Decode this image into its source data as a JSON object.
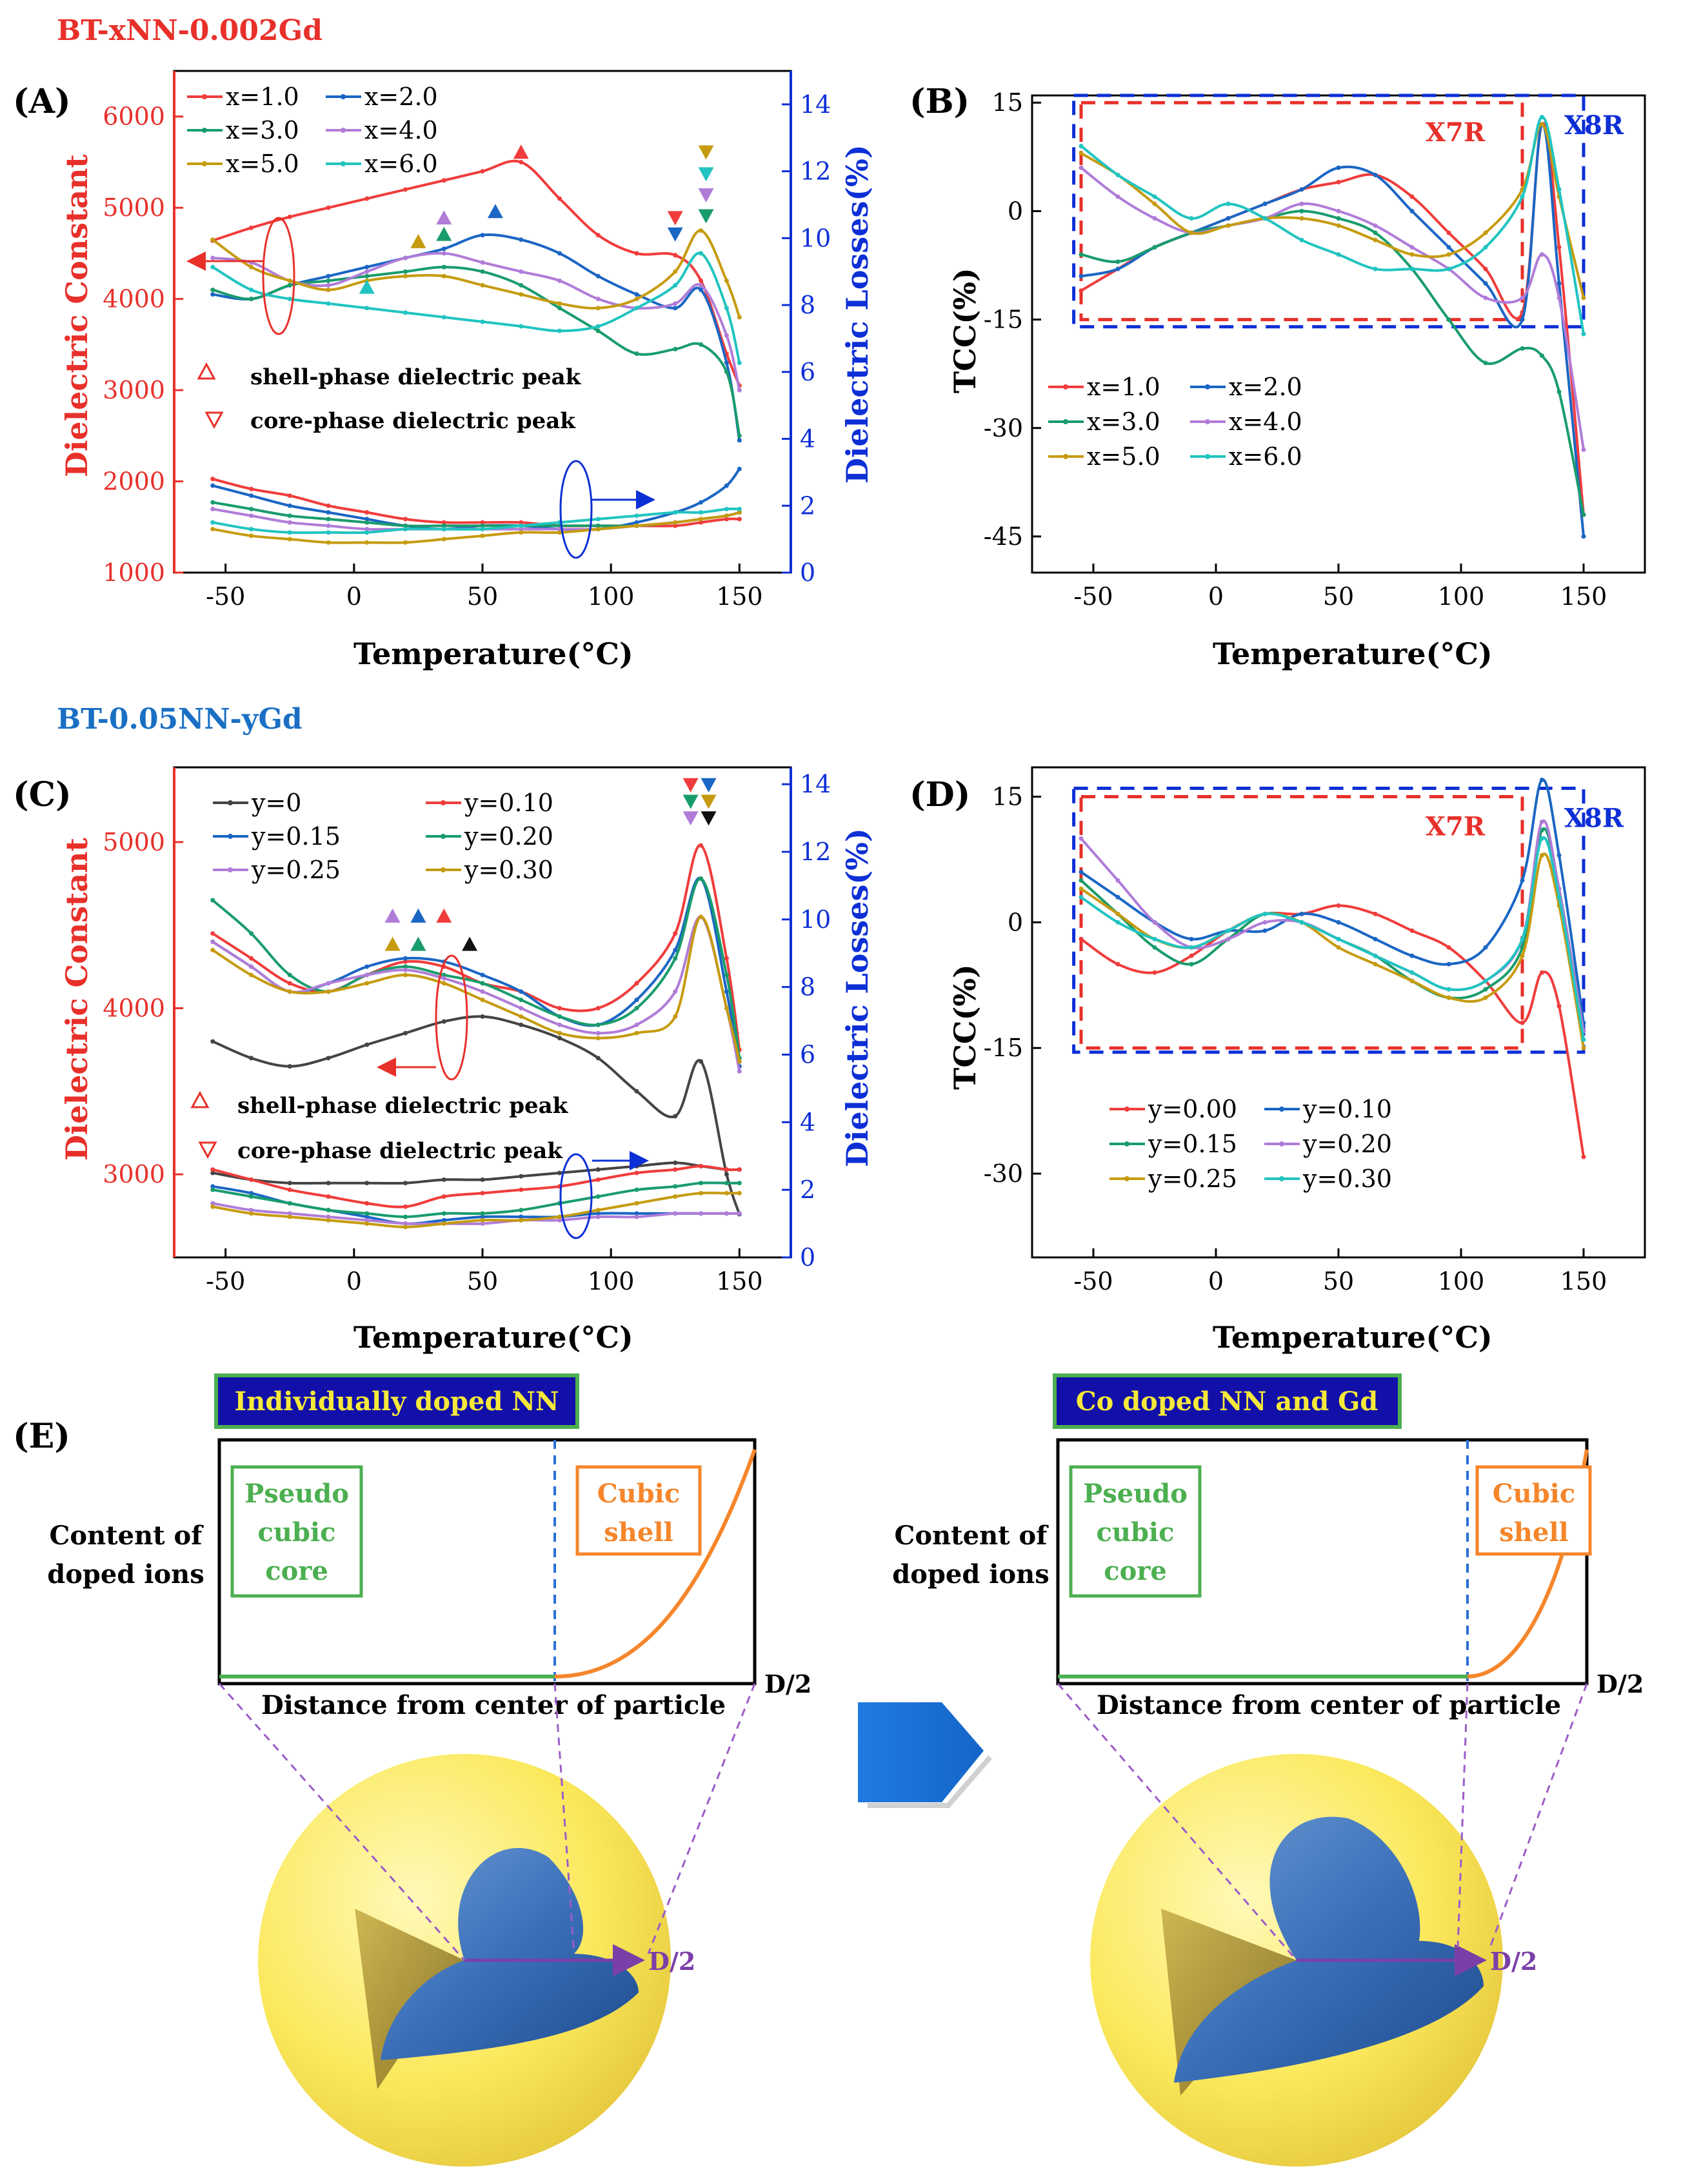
{
  "figure": {
    "group1_title": "BT-xNN-0.002Gd",
    "group2_title": "BT-0.05NN-yGd",
    "colors": {
      "red": "#e8302a",
      "blue": "#0d2fd6",
      "darkred": "#d92020"
    }
  },
  "chart_data": [
    {
      "id": "A",
      "type": "line",
      "panel_label": "(A)",
      "xlabel": "Temperature(°C)",
      "ylabel": "Dielectric Constant",
      "y2label": "Dielectric Losses(%)",
      "xlim": [
        -70,
        170
      ],
      "ylim": [
        1000,
        6500
      ],
      "y2lim": [
        0,
        15
      ],
      "xticks": [
        -50,
        0,
        50,
        100,
        150
      ],
      "yticks": [
        1000,
        2000,
        3000,
        4000,
        5000,
        6000
      ],
      "y2ticks": [
        0,
        2,
        4,
        6,
        8,
        10,
        12,
        14
      ],
      "x": [
        -55,
        -40,
        -25,
        -10,
        5,
        20,
        35,
        50,
        65,
        80,
        95,
        110,
        125,
        135,
        145,
        150
      ],
      "series": [
        {
          "name": "x=1.0",
          "color": "#f03c3c",
          "eps": [
            4640,
            4780,
            4900,
            5000,
            5100,
            5200,
            5300,
            5400,
            5500,
            5100,
            4700,
            4500,
            4480,
            4200,
            3400,
            3050
          ],
          "loss": [
            2.8,
            2.5,
            2.3,
            2.0,
            1.8,
            1.6,
            1.5,
            1.5,
            1.5,
            1.4,
            1.4,
            1.4,
            1.4,
            1.5,
            1.6,
            1.6
          ]
        },
        {
          "name": "x=2.0",
          "color": "#1a66c4",
          "eps": [
            4050,
            4000,
            4150,
            4250,
            4350,
            4450,
            4550,
            4700,
            4650,
            4500,
            4250,
            4050,
            3900,
            4100,
            3300,
            2450
          ],
          "loss": [
            2.6,
            2.3,
            2.0,
            1.8,
            1.6,
            1.4,
            1.3,
            1.4,
            1.4,
            1.3,
            1.3,
            1.5,
            1.8,
            2.1,
            2.6,
            3.1
          ]
        },
        {
          "name": "x=3.0",
          "color": "#199c6c",
          "eps": [
            4100,
            4000,
            4150,
            4200,
            4250,
            4300,
            4350,
            4300,
            4150,
            3900,
            3650,
            3400,
            3450,
            3500,
            3200,
            2500
          ],
          "loss": [
            2.1,
            1.9,
            1.7,
            1.6,
            1.5,
            1.4,
            1.4,
            1.4,
            1.4,
            1.4,
            1.4,
            1.4,
            1.5,
            1.6,
            1.7,
            1.8
          ]
        },
        {
          "name": "x=4.0",
          "color": "#b07cd8",
          "eps": [
            4450,
            4400,
            4200,
            4150,
            4300,
            4450,
            4500,
            4400,
            4300,
            4200,
            4000,
            3900,
            3950,
            4150,
            3600,
            3000
          ],
          "loss": [
            1.9,
            1.7,
            1.5,
            1.4,
            1.3,
            1.3,
            1.3,
            1.3,
            1.3,
            1.3,
            1.3,
            1.4,
            1.5,
            1.6,
            1.7,
            1.8
          ]
        },
        {
          "name": "x=5.0",
          "color": "#c69b0f",
          "eps": [
            4650,
            4350,
            4200,
            4100,
            4200,
            4250,
            4250,
            4150,
            4050,
            3950,
            3900,
            4000,
            4300,
            4750,
            4200,
            3800
          ],
          "loss": [
            1.3,
            1.1,
            1.0,
            0.9,
            0.9,
            0.9,
            1.0,
            1.1,
            1.2,
            1.2,
            1.3,
            1.4,
            1.5,
            1.6,
            1.7,
            1.8
          ]
        },
        {
          "name": "x=6.0",
          "color": "#21c4c0",
          "eps": [
            4350,
            4100,
            4000,
            3950,
            3900,
            3850,
            3800,
            3750,
            3700,
            3650,
            3700,
            3900,
            4150,
            4500,
            3900,
            3300
          ],
          "loss": [
            1.5,
            1.3,
            1.2,
            1.2,
            1.2,
            1.3,
            1.3,
            1.3,
            1.4,
            1.5,
            1.6,
            1.7,
            1.8,
            1.8,
            1.9,
            1.9
          ]
        }
      ],
      "shell_markers": [
        {
          "x": 65,
          "eps": 5600,
          "color": "#f03c3c"
        },
        {
          "x": 55,
          "eps": 4950,
          "color": "#1a66c4"
        },
        {
          "x": 35,
          "eps": 4700,
          "color": "#199c6c"
        },
        {
          "x": 35,
          "eps": 4880,
          "color": "#b07cd8"
        },
        {
          "x": 25,
          "eps": 4620,
          "color": "#c69b0f"
        },
        {
          "x": 5,
          "eps": 4120,
          "color": "#21c4c0"
        }
      ],
      "core_markers": [
        {
          "x": 125,
          "eps": 4900,
          "color": "#f03c3c"
        },
        {
          "x": 125,
          "eps": 4720,
          "color": "#1a66c4"
        },
        {
          "x": 137,
          "eps": 4920,
          "color": "#199c6c"
        },
        {
          "x": 137,
          "eps": 5150,
          "color": "#b07cd8"
        },
        {
          "x": 137,
          "eps": 5620,
          "color": "#c69b0f"
        },
        {
          "x": 137,
          "eps": 5380,
          "color": "#21c4c0"
        }
      ],
      "annotations": [
        "shell-phase dielectric peak",
        "core-phase dielectric peak"
      ]
    },
    {
      "id": "B",
      "type": "line",
      "panel_label": "(B)",
      "xlabel": "Temperature(°C)",
      "ylabel": "TCC(%)",
      "xlim": [
        -75,
        175
      ],
      "ylim": [
        -50,
        16
      ],
      "xticks": [
        -50,
        0,
        50,
        100,
        150
      ],
      "yticks": [
        15,
        0,
        -15,
        -30,
        -45
      ],
      "x": [
        -55,
        -40,
        -25,
        -10,
        5,
        20,
        35,
        50,
        65,
        80,
        95,
        110,
        125,
        133,
        140,
        150
      ],
      "series": [
        {
          "name": "x=1.0",
          "color": "#f03c3c",
          "tcc": [
            -11,
            -8,
            -5,
            -3,
            -1,
            1,
            3,
            4,
            5,
            2,
            -3,
            -8,
            -14,
            12,
            -5,
            -42
          ]
        },
        {
          "name": "x=2.0",
          "color": "#1a66c4",
          "tcc": [
            -9,
            -8,
            -5,
            -3,
            -1,
            1,
            3,
            6,
            5,
            0,
            -5,
            -10,
            -15,
            12,
            -10,
            -45
          ]
        },
        {
          "name": "x=3.0",
          "color": "#199c6c",
          "tcc": [
            -6,
            -7,
            -5,
            -3,
            -2,
            -1,
            0,
            -1,
            -3,
            -8,
            -15,
            -21,
            -19,
            -20,
            -25,
            -42
          ]
        },
        {
          "name": "x=4.0",
          "color": "#b07cd8",
          "tcc": [
            6,
            2,
            -1,
            -3,
            -2,
            -1,
            1,
            0,
            -2,
            -5,
            -8,
            -12,
            -12,
            -6,
            -12,
            -33
          ]
        },
        {
          "name": "x=5.0",
          "color": "#c69b0f",
          "tcc": [
            8,
            5,
            1,
            -3,
            -2,
            -1,
            -1,
            -2,
            -4,
            -6,
            -6,
            -3,
            3,
            12,
            2,
            -12
          ]
        },
        {
          "name": "x=6.0",
          "color": "#21c4c0",
          "tcc": [
            9,
            5,
            2,
            -1,
            1,
            -1,
            -4,
            -6,
            -8,
            -8,
            -8,
            -5,
            2,
            13,
            3,
            -17
          ]
        }
      ],
      "boxes": [
        {
          "label": "X7R",
          "x0": -55,
          "x1": 125,
          "y0": -15,
          "y1": 15,
          "color": "#e8302a"
        },
        {
          "label": "X8R",
          "x0": -58,
          "x1": 150,
          "y0": -16,
          "y1": 16,
          "color": "#0d2fd6"
        }
      ]
    },
    {
      "id": "C",
      "type": "line",
      "panel_label": "(C)",
      "xlabel": "Temperature(°C)",
      "ylabel": "Dielectric Constant",
      "y2label": "Dielectric Losses(%)",
      "xlim": [
        -70,
        170
      ],
      "ylim": [
        2500,
        5450
      ],
      "y2lim": [
        0,
        14.5
      ],
      "xticks": [
        -50,
        0,
        50,
        100,
        150
      ],
      "yticks": [
        3000,
        4000,
        5000
      ],
      "y2ticks": [
        0,
        2,
        4,
        6,
        8,
        10,
        12,
        14
      ],
      "x": [
        -55,
        -40,
        -25,
        -10,
        5,
        20,
        35,
        50,
        65,
        80,
        95,
        110,
        125,
        135,
        145,
        150
      ],
      "series": [
        {
          "name": "y=0",
          "color": "#444444",
          "eps": [
            3800,
            3700,
            3650,
            3700,
            3780,
            3850,
            3920,
            3950,
            3900,
            3820,
            3700,
            3500,
            3350,
            3680,
            3000,
            2760
          ],
          "loss": [
            2.5,
            2.3,
            2.2,
            2.2,
            2.2,
            2.2,
            2.3,
            2.3,
            2.4,
            2.5,
            2.6,
            2.7,
            2.8,
            2.7,
            2.6,
            2.6
          ]
        },
        {
          "name": "y=0.10",
          "color": "#f03c3c",
          "eps": [
            4450,
            4300,
            4150,
            4100,
            4200,
            4280,
            4250,
            4150,
            4100,
            4000,
            4000,
            4150,
            4450,
            4980,
            4300,
            3750
          ],
          "loss": [
            2.6,
            2.3,
            2.0,
            1.8,
            1.6,
            1.5,
            1.8,
            1.9,
            2.0,
            2.1,
            2.3,
            2.5,
            2.6,
            2.7,
            2.6,
            2.6
          ]
        },
        {
          "name": "y=0.15",
          "color": "#1a66c4",
          "eps": [
            4400,
            4250,
            4100,
            4150,
            4250,
            4300,
            4280,
            4200,
            4100,
            3950,
            3900,
            4050,
            4350,
            4780,
            4100,
            3650
          ],
          "loss": [
            2.1,
            1.9,
            1.6,
            1.4,
            1.2,
            1.0,
            1.1,
            1.2,
            1.2,
            1.2,
            1.3,
            1.3,
            1.3,
            1.3,
            1.3,
            1.3
          ]
        },
        {
          "name": "y=0.20",
          "color": "#199c6c",
          "eps": [
            4650,
            4450,
            4200,
            4100,
            4200,
            4250,
            4200,
            4150,
            4050,
            3950,
            3900,
            4000,
            4300,
            4780,
            4200,
            3700
          ],
          "loss": [
            2.0,
            1.8,
            1.6,
            1.4,
            1.3,
            1.2,
            1.3,
            1.3,
            1.4,
            1.6,
            1.8,
            2.0,
            2.1,
            2.2,
            2.2,
            2.2
          ]
        },
        {
          "name": "y=0.25",
          "color": "#b07cd8",
          "eps": [
            4400,
            4250,
            4100,
            4150,
            4200,
            4230,
            4180,
            4100,
            4000,
            3900,
            3850,
            3900,
            4100,
            4550,
            4000,
            3620
          ],
          "loss": [
            1.6,
            1.4,
            1.3,
            1.2,
            1.1,
            1.0,
            1.0,
            1.0,
            1.1,
            1.1,
            1.2,
            1.2,
            1.3,
            1.3,
            1.3,
            1.3
          ]
        },
        {
          "name": "y=0.30",
          "color": "#c69b0f",
          "eps": [
            4350,
            4200,
            4100,
            4100,
            4150,
            4200,
            4150,
            4050,
            3950,
            3850,
            3820,
            3850,
            3950,
            4550,
            4000,
            3680
          ],
          "loss": [
            1.5,
            1.3,
            1.2,
            1.1,
            1.0,
            0.9,
            1.0,
            1.1,
            1.1,
            1.2,
            1.4,
            1.6,
            1.8,
            1.9,
            1.9,
            1.9
          ]
        }
      ],
      "shell_markers": [
        {
          "x": 15,
          "eps": 4550,
          "color": "#b07cd8"
        },
        {
          "x": 25,
          "eps": 4550,
          "color": "#1a66c4"
        },
        {
          "x": 35,
          "eps": 4550,
          "color": "#f03c3c"
        },
        {
          "x": 15,
          "eps": 4380,
          "color": "#c69b0f"
        },
        {
          "x": 25,
          "eps": 4380,
          "color": "#199c6c"
        },
        {
          "x": 45,
          "eps": 4380,
          "color": "#111111"
        }
      ],
      "core_markers": [
        {
          "x": 131,
          "eps": 5350,
          "color": "#f03c3c"
        },
        {
          "x": 138,
          "eps": 5350,
          "color": "#1a66c4"
        },
        {
          "x": 131,
          "eps": 5250,
          "color": "#199c6c"
        },
        {
          "x": 138,
          "eps": 5250,
          "color": "#c69b0f"
        },
        {
          "x": 131,
          "eps": 5150,
          "color": "#b07cd8"
        },
        {
          "x": 138,
          "eps": 5150,
          "color": "#111111"
        }
      ],
      "annotations": [
        "shell-phase dielectric peak",
        "core-phase dielectric peak"
      ]
    },
    {
      "id": "D",
      "type": "line",
      "panel_label": "(D)",
      "xlabel": "Temperature(°C)",
      "ylabel": "TCC(%)",
      "xlim": [
        -75,
        175
      ],
      "ylim": [
        -40,
        18.5
      ],
      "xticks": [
        -50,
        0,
        50,
        100,
        150
      ],
      "yticks": [
        15,
        0,
        -15,
        -30
      ],
      "x": [
        -55,
        -40,
        -25,
        -10,
        5,
        20,
        35,
        50,
        65,
        80,
        95,
        110,
        125,
        133,
        140,
        150
      ],
      "series": [
        {
          "name": "y=0.00",
          "color": "#f03c3c",
          "tcc": [
            -2,
            -5,
            -6,
            -4,
            -1,
            1,
            1,
            2,
            1,
            -1,
            -3,
            -7,
            -12,
            -6,
            -10,
            -28
          ]
        },
        {
          "name": "y=0.10",
          "color": "#1a66c4",
          "tcc": [
            6,
            3,
            0,
            -2,
            -1,
            -1,
            1,
            0,
            -2,
            -4,
            -5,
            -3,
            5,
            17,
            8,
            -12
          ]
        },
        {
          "name": "y=0.15",
          "color": "#199c6c",
          "tcc": [
            5,
            1,
            -3,
            -5,
            -2,
            1,
            0,
            -2,
            -4,
            -7,
            -9,
            -8,
            -3,
            11,
            4,
            -13
          ]
        },
        {
          "name": "y=0.20",
          "color": "#b07cd8",
          "tcc": [
            10,
            5,
            0,
            -3,
            -2,
            0,
            0,
            -2,
            -4,
            -6,
            -8,
            -7,
            -2,
            12,
            4,
            -13
          ]
        },
        {
          "name": "y=0.25",
          "color": "#c69b0f",
          "tcc": [
            4,
            1,
            -2,
            -3,
            -1,
            1,
            0,
            -3,
            -5,
            -7,
            -9,
            -9,
            -4,
            8,
            2,
            -15
          ]
        },
        {
          "name": "y=0.30",
          "color": "#21c4c0",
          "tcc": [
            3,
            0,
            -2,
            -3,
            -1,
            1,
            0,
            -2,
            -4,
            -6,
            -8,
            -7,
            -2,
            10,
            3,
            -14
          ]
        }
      ],
      "boxes": [
        {
          "label": "X7R",
          "x0": -55,
          "x1": 125,
          "y0": -15,
          "y1": 15,
          "color": "#e8302a"
        },
        {
          "label": "X8R",
          "x0": -58,
          "x1": 150,
          "y0": -15.5,
          "y1": 16,
          "color": "#0d2fd6"
        }
      ]
    }
  ],
  "panelE": {
    "label": "(E)",
    "left_title": "Individually doped NN",
    "right_title": "Co doped NN and Gd",
    "ylabel_line1": "Content of",
    "ylabel_line2": "doped ions",
    "xlabel": "Distance from center of particle",
    "end_label": "D/2",
    "core_line1": "Pseudo",
    "core_line2": "cubic",
    "core_line3": "core",
    "shell_line1": "Cubic",
    "shell_line2": "shell",
    "radius_label": "D/2"
  }
}
